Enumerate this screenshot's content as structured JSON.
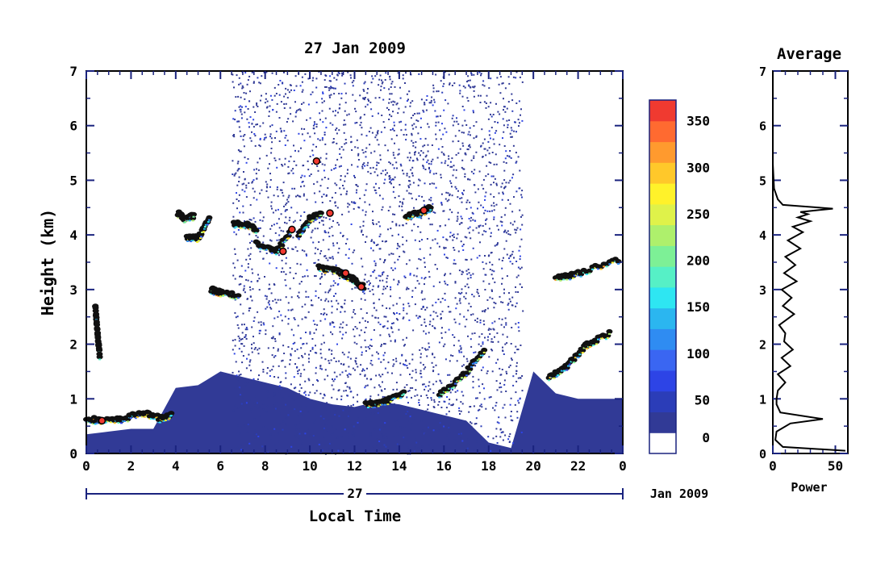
{
  "chart_data": [
    {
      "type": "heatmap",
      "title": "27 Jan 2009",
      "xlabel": "Local Time",
      "ylabel": "Height (km)",
      "xlim": [
        0,
        24
      ],
      "ylim": [
        0,
        7
      ],
      "x_ticks": [
        "0",
        "2",
        "4",
        "6",
        "8",
        "10",
        "12",
        "14",
        "16",
        "18",
        "20",
        "22",
        "0"
      ],
      "y_ticks": [
        "0",
        "1",
        "2",
        "3",
        "4",
        "5",
        "6",
        "7"
      ],
      "day_label": "27",
      "month_label": "Jan 2009",
      "colorbar": {
        "ticks": [
          "0",
          "50",
          "100",
          "150",
          "200",
          "250",
          "300",
          "350"
        ],
        "vmin": 0,
        "vmax": 380,
        "colors": [
          "#ffffff",
          "#313a96",
          "#2b3db8",
          "#2d44e6",
          "#3a66f2",
          "#2f8cf2",
          "#2bb6f0",
          "#2ee6f2",
          "#56f0c6",
          "#7df096",
          "#aef06c",
          "#dff24a",
          "#fff22a",
          "#ffc82a",
          "#ff9a2e",
          "#ff6a30",
          "#f03a30"
        ]
      },
      "layers": [
        {
          "name": "surface_layer",
          "x_start": 0,
          "x_end": 24,
          "top_km": [
            0.35,
            0.4,
            0.45,
            0.45,
            1.2,
            1.25,
            1.5,
            1.4,
            1.3,
            1.2,
            1.0,
            0.9,
            0.85,
            0.95,
            0.9,
            0.8,
            0.7,
            0.6,
            0.2,
            0.1,
            1.5,
            1.1,
            1.0,
            1.0,
            1.0
          ]
        },
        {
          "name": "clutter_region",
          "x_start": 6.5,
          "x_end": 19.5,
          "y_range": [
            0,
            7
          ]
        }
      ],
      "cloud_segments": [
        {
          "t": [
            0.0,
            0.7,
            1.5,
            2.5,
            3.3,
            3.8
          ],
          "h": [
            0.65,
            0.6,
            0.62,
            0.75,
            0.65,
            0.7
          ]
        },
        {
          "t": [
            0.4,
            0.5,
            0.6
          ],
          "h": [
            2.7,
            2.2,
            1.8
          ]
        },
        {
          "t": [
            4.1,
            4.4,
            4.8
          ],
          "h": [
            4.4,
            4.3,
            4.35
          ]
        },
        {
          "t": [
            4.5,
            5.0,
            5.5
          ],
          "h": [
            3.95,
            3.95,
            4.3
          ]
        },
        {
          "t": [
            5.6,
            6.0,
            6.8
          ],
          "h": [
            3.0,
            2.95,
            2.9
          ]
        },
        {
          "t": [
            6.6,
            7.2,
            7.6
          ],
          "h": [
            4.2,
            4.2,
            4.1
          ]
        },
        {
          "t": [
            7.6,
            8.5,
            9.2
          ],
          "h": [
            3.85,
            3.7,
            4.1
          ]
        },
        {
          "t": [
            9.5,
            10.0,
            10.5
          ],
          "h": [
            4.0,
            4.3,
            4.4
          ]
        },
        {
          "t": [
            10.4,
            11.2,
            11.9,
            12.4
          ],
          "h": [
            3.4,
            3.35,
            3.2,
            3.05
          ]
        },
        {
          "t": [
            14.3,
            14.9,
            15.4
          ],
          "h": [
            4.35,
            4.4,
            4.5
          ]
        },
        {
          "t": [
            12.5,
            13.3,
            14.2
          ],
          "h": [
            0.9,
            0.95,
            1.1
          ]
        },
        {
          "t": [
            15.8,
            16.8,
            17.8
          ],
          "h": [
            1.1,
            1.4,
            1.9
          ]
        },
        {
          "t": [
            20.7,
            21.5,
            22.4,
            23.4
          ],
          "h": [
            1.4,
            1.6,
            2.0,
            2.2
          ]
        },
        {
          "t": [
            21.0,
            22.0,
            23.8
          ],
          "h": [
            3.2,
            3.3,
            3.55
          ]
        }
      ],
      "peaks": [
        {
          "t": 10.3,
          "h": 5.35,
          "v": 380
        },
        {
          "t": 9.2,
          "h": 4.1,
          "v": 380
        },
        {
          "t": 10.9,
          "h": 4.4,
          "v": 380
        },
        {
          "t": 8.8,
          "h": 3.7,
          "v": 380
        },
        {
          "t": 11.6,
          "h": 3.3,
          "v": 380
        },
        {
          "t": 12.3,
          "h": 3.05,
          "v": 380
        },
        {
          "t": 15.1,
          "h": 4.45,
          "v": 380
        },
        {
          "t": 0.7,
          "h": 0.6,
          "v": 380
        }
      ]
    },
    {
      "type": "line",
      "title": "Average",
      "xlabel": "Power",
      "ylabel": "",
      "xlim": [
        0,
        60
      ],
      "ylim": [
        0,
        7
      ],
      "x_ticks": [
        "0",
        "50"
      ],
      "y_ticks": [
        "0",
        "1",
        "2",
        "3",
        "4",
        "5",
        "6",
        "7"
      ],
      "series": [
        {
          "x": [
            58,
            8,
            2,
            3,
            14,
            40,
            6,
            3,
            3,
            4,
            10,
            4,
            14,
            7,
            16,
            9,
            10,
            5,
            17,
            8,
            15,
            7,
            19,
            9,
            18,
            10,
            22,
            12,
            24,
            16,
            30,
            20,
            28,
            22,
            48,
            8,
            4,
            1,
            0,
            0
          ],
          "y": [
            0.05,
            0.12,
            0.25,
            0.4,
            0.55,
            0.63,
            0.75,
            0.9,
            1.0,
            1.15,
            1.3,
            1.45,
            1.6,
            1.75,
            1.9,
            2.05,
            2.2,
            2.35,
            2.55,
            2.7,
            2.85,
            3.0,
            3.15,
            3.3,
            3.45,
            3.6,
            3.75,
            3.9,
            4.05,
            4.15,
            4.25,
            4.32,
            4.38,
            4.42,
            4.48,
            4.55,
            4.65,
            4.85,
            5.3,
            7.0
          ]
        }
      ]
    }
  ]
}
